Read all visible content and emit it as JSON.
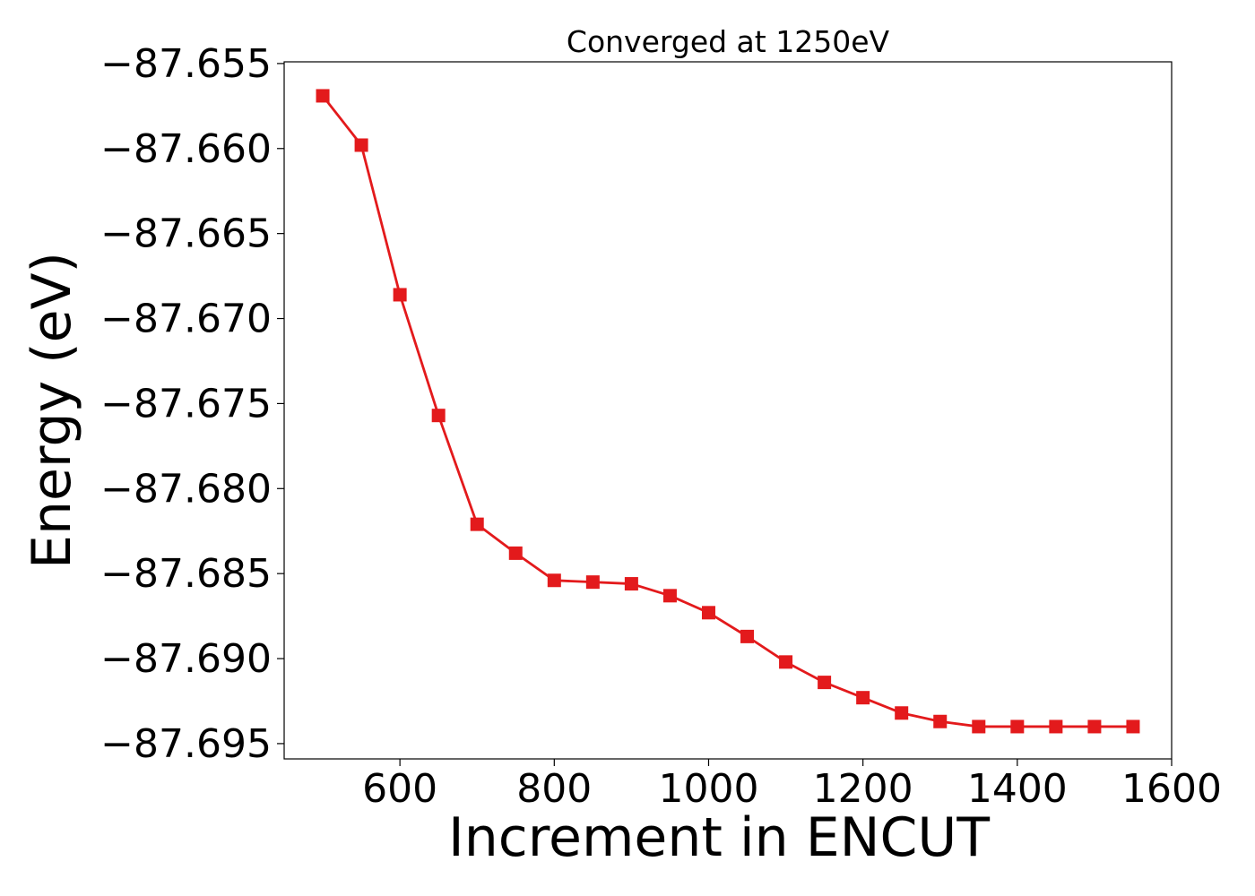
{
  "chart_data": {
    "type": "line",
    "title": "Converged at 1250eV",
    "xlabel": "Increment in ENCUT",
    "ylabel": "Energy (eV)",
    "xlim": [
      450,
      1600
    ],
    "ylim": [
      -87.6959,
      -87.6549
    ],
    "x_ticks": [
      600,
      800,
      1000,
      1200,
      1400,
      1600
    ],
    "x_tick_labels": [
      "600",
      "800",
      "1000",
      "1200",
      "1400",
      "1600"
    ],
    "y_ticks": [
      -87.655,
      -87.66,
      -87.665,
      -87.67,
      -87.675,
      -87.68,
      -87.685,
      -87.69,
      -87.695
    ],
    "y_tick_labels": [
      "−87.655",
      "−87.660",
      "−87.665",
      "−87.670",
      "−87.675",
      "−87.680",
      "−87.685",
      "−87.690",
      "−87.695"
    ],
    "grid": false,
    "series": [
      {
        "color": "#e31a1c",
        "marker": "square",
        "x": [
          500,
          550,
          600,
          650,
          700,
          750,
          800,
          850,
          900,
          950,
          1000,
          1050,
          1100,
          1150,
          1200,
          1250,
          1300,
          1350,
          1400,
          1450,
          1500,
          1550
        ],
        "y": [
          -87.6569,
          -87.6598,
          -87.6686,
          -87.6757,
          -87.6821,
          -87.6838,
          -87.6854,
          -87.6855,
          -87.6856,
          -87.6863,
          -87.6873,
          -87.6887,
          -87.6902,
          -87.6914,
          -87.6923,
          -87.6932,
          -87.6937,
          -87.694,
          -87.694,
          -87.694,
          -87.694,
          -87.694
        ]
      }
    ]
  }
}
